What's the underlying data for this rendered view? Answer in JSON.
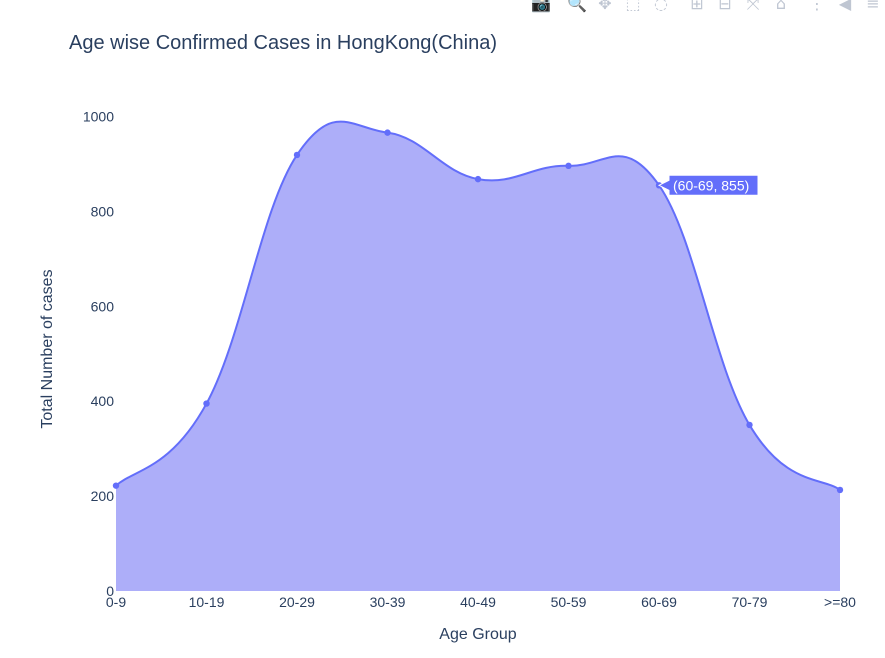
{
  "chart_data": {
    "type": "area",
    "title": "Age wise Confirmed Cases in HongKong(China)",
    "xlabel": "Age Group",
    "ylabel": "Total Number of cases",
    "categories": [
      "0-9",
      "10-19",
      "20-29",
      "30-39",
      "40-49",
      "50-59",
      "60-69",
      "70-79",
      ">=80"
    ],
    "series": [
      {
        "values": [
          222,
          395,
          919,
          966,
          868,
          896,
          855,
          350,
          213
        ]
      }
    ],
    "ylim": [
      0,
      1050
    ],
    "yticks": [
      0,
      200,
      400,
      600,
      800,
      1000
    ],
    "grid": false,
    "line_color": "#636efa",
    "fill_color": "#adaef9",
    "hover": {
      "label": "(60-69, 855)",
      "category": "60-69",
      "value": 855
    }
  },
  "modebar": {
    "icons": [
      {
        "name": "camera-icon",
        "glyph": "📷",
        "active": false
      },
      {
        "name": "zoom-icon",
        "glyph": "🔍",
        "active": true
      },
      {
        "name": "pan-icon",
        "glyph": "✥",
        "active": false
      },
      {
        "name": "box-select-icon",
        "glyph": "⬚",
        "active": false
      },
      {
        "name": "lasso-select-icon",
        "glyph": "◌",
        "active": false
      },
      {
        "name": "zoom-in-icon",
        "glyph": "⊞",
        "active": false
      },
      {
        "name": "zoom-out-icon",
        "glyph": "⊟",
        "active": false
      },
      {
        "name": "autoscale-icon",
        "glyph": "⤧",
        "active": false
      },
      {
        "name": "reset-axes-icon",
        "glyph": "⌂",
        "active": false
      },
      {
        "name": "spike-lines-icon",
        "glyph": "⋮",
        "active": false
      },
      {
        "name": "hover-closest-icon",
        "glyph": "◀",
        "active": false
      },
      {
        "name": "hover-compare-icon",
        "glyph": "≡",
        "active": false
      }
    ]
  }
}
